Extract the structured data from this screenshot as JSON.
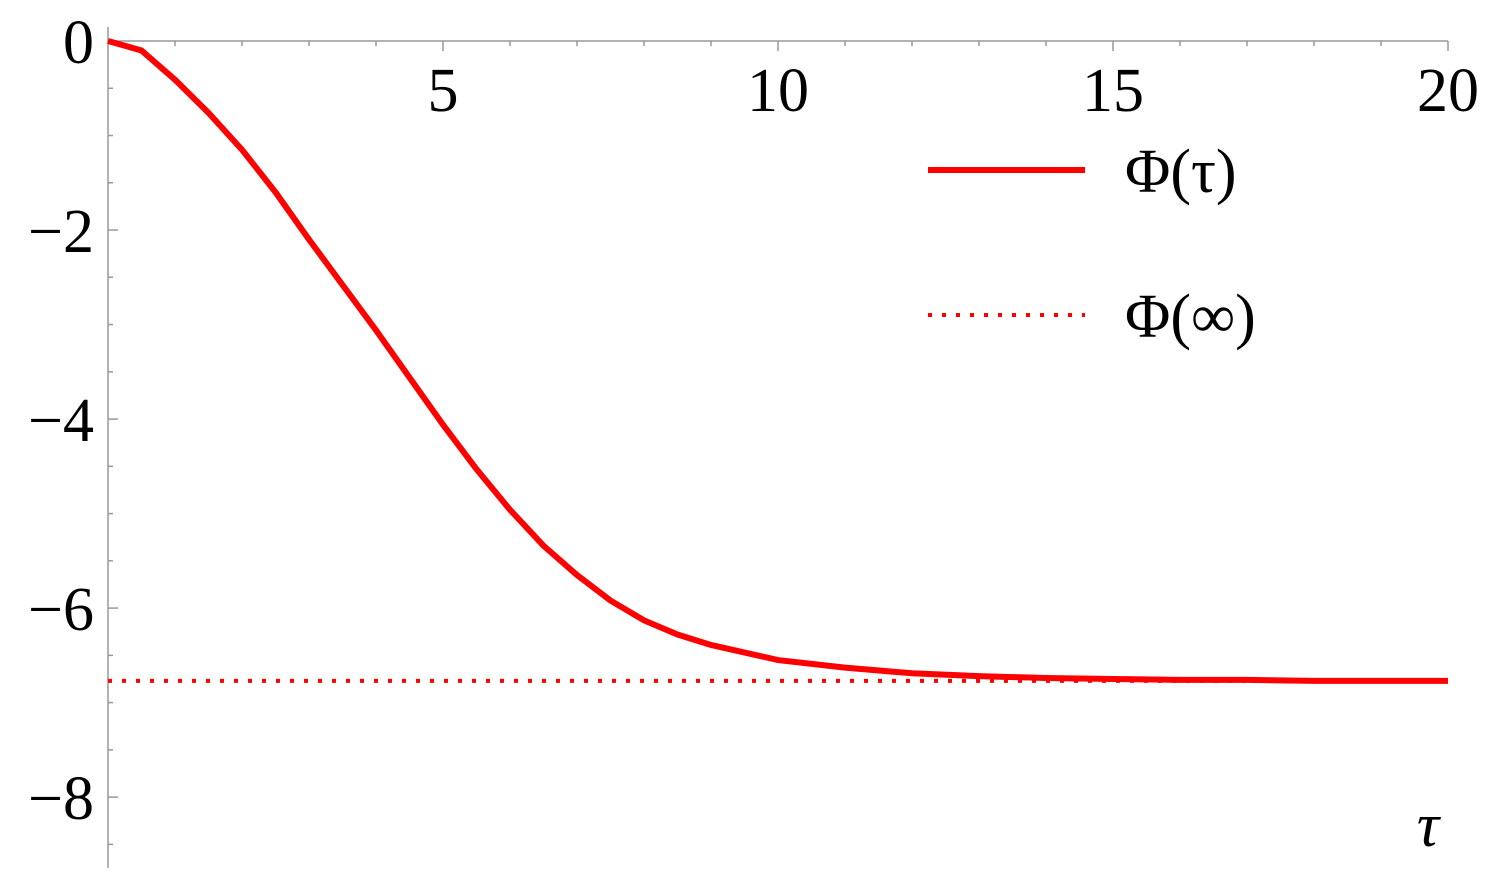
{
  "chart_data": {
    "type": "line",
    "x_label": "τ",
    "xlim": [
      0,
      20
    ],
    "xticks": [
      5,
      10,
      15,
      20
    ],
    "xminorticks": [
      1,
      2,
      3,
      4,
      6,
      7,
      8,
      9,
      11,
      12,
      13,
      14,
      16,
      17,
      18,
      19
    ],
    "ylim": [
      -8.75,
      0
    ],
    "yticks": [
      0,
      {
        "value": -2,
        "label": "−2"
      },
      {
        "value": -4,
        "label": "−4"
      },
      {
        "value": -6,
        "label": "−6"
      },
      {
        "value": -8,
        "label": "−8"
      }
    ],
    "yminorticks": [
      -0.5,
      -1,
      -1.5,
      -2.5,
      -3,
      -3.5,
      -4.5,
      -5,
      -5.5,
      -6.5,
      -7,
      -7.5,
      -8.5
    ],
    "legend": "top-right",
    "series": [
      {
        "name": "Φ(τ)",
        "color": "#ff0000",
        "dash": "solid",
        "x": [
          0,
          0.5,
          1,
          1.5,
          2,
          2.5,
          3,
          3.5,
          4,
          4.5,
          5,
          5.5,
          6,
          6.5,
          7,
          7.5,
          8,
          8.5,
          9,
          10,
          11,
          12,
          13,
          14,
          15,
          16,
          17,
          18,
          19,
          20
        ],
        "values": [
          0,
          -0.1,
          -0.41,
          -0.76,
          -1.15,
          -1.6,
          -2.1,
          -2.58,
          -3.06,
          -3.56,
          -4.06,
          -4.53,
          -4.96,
          -5.34,
          -5.65,
          -5.92,
          -6.13,
          -6.28,
          -6.39,
          -6.55,
          -6.63,
          -6.69,
          -6.72,
          -6.74,
          -6.75,
          -6.76,
          -6.76,
          -6.77,
          -6.77,
          -6.77
        ]
      },
      {
        "name": "Φ(∞)",
        "color": "#ff0000",
        "dash": "dotted",
        "x": [
          0,
          20
        ],
        "values": [
          -6.77,
          -6.77
        ]
      }
    ]
  }
}
